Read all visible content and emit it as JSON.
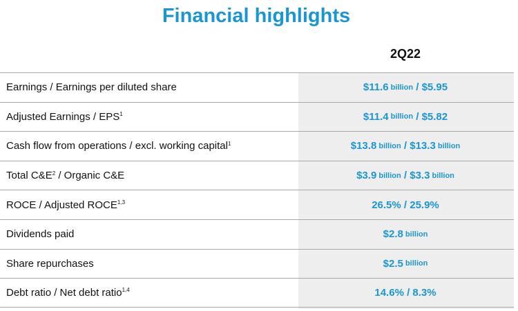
{
  "title": "Financial highlights",
  "column_header": "2Q22",
  "rows": [
    {
      "label": "Earnings / Earnings per diluted share",
      "sup": "",
      "value_parts": [
        [
          "$11.6",
          " billion",
          " / $5.95"
        ]
      ]
    },
    {
      "label": "Adjusted Earnings / EPS",
      "sup": "1",
      "value_parts": [
        [
          "$11.4",
          " billion",
          " / $5.82"
        ]
      ]
    },
    {
      "label": "Cash flow from operations / excl. working capital",
      "sup": "1",
      "value_parts": [
        [
          "$13.8",
          " billion",
          " / $13.3",
          " billion"
        ]
      ]
    },
    {
      "label": "Total C&E",
      "sup": "2",
      "label_suffix": " / Organic C&E",
      "value_parts": [
        [
          "$3.9",
          " billion",
          " / $3.3",
          " billion"
        ]
      ]
    },
    {
      "label": "ROCE / Adjusted ROCE",
      "sup": "1,3",
      "value_parts": [
        [
          "26.5% / 25.9%"
        ]
      ]
    },
    {
      "label": "Dividends paid",
      "sup": "",
      "value_parts": [
        [
          "$2.8",
          " billion"
        ]
      ]
    },
    {
      "label": "Share repurchases",
      "sup": "",
      "value_parts": [
        [
          "$2.5",
          " billion"
        ]
      ]
    },
    {
      "label": "Debt ratio / Net debt ratio",
      "sup": "1,4",
      "value_parts": [
        [
          "14.6% / 8.3%"
        ]
      ]
    }
  ],
  "colors": {
    "accent": "#1b96d4",
    "shade": "#eeeeee",
    "rule": "#a8a8a8"
  }
}
